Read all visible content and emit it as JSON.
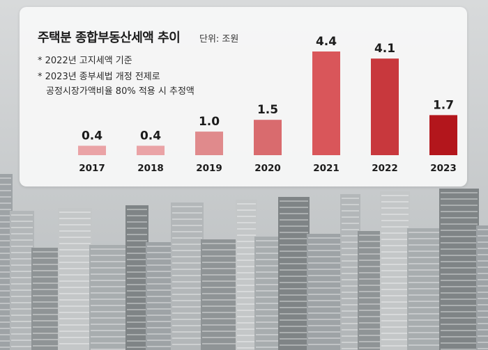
{
  "chart_data": {
    "type": "bar",
    "title": "주택분 종합부동산세액 추이",
    "unit_label": "단위: 조원",
    "notes": [
      "*  2022년 고지세액 기준",
      "*  2023년 종부세법 개정 전제로",
      "공정시장가액비율 80% 적용 시 추정액"
    ],
    "categories": [
      "2017",
      "2018",
      "2019",
      "2020",
      "2021",
      "2022",
      "2023"
    ],
    "values": [
      0.4,
      0.4,
      1.0,
      1.5,
      4.4,
      4.1,
      1.7
    ],
    "value_labels": [
      "0.4",
      "0.4",
      "1.0",
      "1.5",
      "4.4",
      "4.1",
      "1.7"
    ],
    "bar_colors": [
      "#eaa3a6",
      "#eaa3a6",
      "#e08a8c",
      "#d96b6e",
      "#d9565a",
      "#c8383d",
      "#b3161c"
    ],
    "ylim": [
      0,
      4.4
    ],
    "xlabel": "",
    "ylabel": ""
  }
}
